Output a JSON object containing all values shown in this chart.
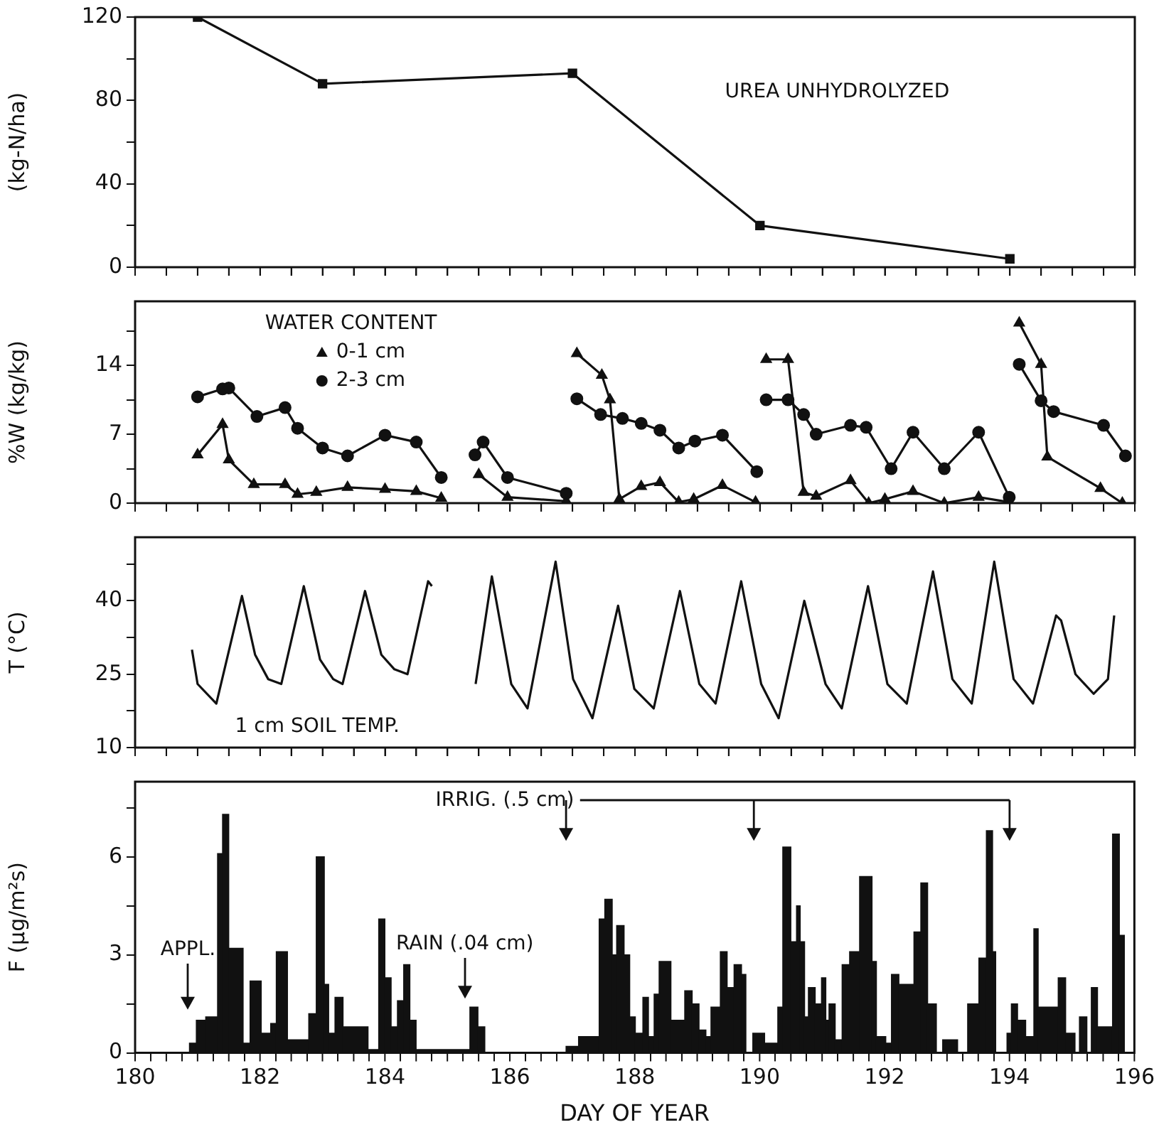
{
  "chart_data": [
    {
      "type": "line",
      "ylabel": "(kg-N/ha)",
      "annotations": [
        "UREA UNHYDROLYZED"
      ],
      "marker": "square",
      "tick_labels": "y",
      "x": [
        181,
        183,
        187,
        190,
        194
      ],
      "series": [
        {
          "color": "#111111",
          "values": [
            120,
            88,
            93,
            20,
            4
          ]
        }
      ],
      "xlim": [
        180,
        196
      ],
      "xticks": [
        180,
        {
          "value": 180.5,
          "label": null
        },
        {
          "value": 181,
          "label": null
        },
        {
          "value": 181.5,
          "label": null
        },
        182,
        {
          "value": 182.5,
          "label": null
        },
        {
          "value": 183,
          "label": null
        },
        {
          "value": 183.5,
          "label": null
        },
        184,
        {
          "value": 184.5,
          "label": null
        },
        {
          "value": 185,
          "label": null
        },
        {
          "value": 185.5,
          "label": null
        },
        186,
        {
          "value": 186.5,
          "label": null
        },
        {
          "value": 187,
          "label": null
        },
        {
          "value": 187.5,
          "label": null
        },
        188,
        {
          "value": 188.5,
          "label": null
        },
        {
          "value": 189,
          "label": null
        },
        {
          "value": 189.5,
          "label": null
        },
        190,
        {
          "value": 190.5,
          "label": null
        },
        {
          "value": 191,
          "label": null
        },
        {
          "value": 191.5,
          "label": null
        },
        192,
        {
          "value": 192.5,
          "label": null
        },
        {
          "value": 193,
          "label": null
        },
        {
          "value": 193.5,
          "label": null
        },
        194,
        {
          "value": 194.5,
          "label": null
        },
        {
          "value": 195,
          "label": null
        },
        {
          "value": 195.5,
          "label": null
        },
        196
      ],
      "ylim": [
        0,
        120
      ],
      "yticks": [
        0,
        {
          "value": 20,
          "label": null
        },
        40,
        {
          "value": 60,
          "label": null
        },
        80,
        {
          "value": 100,
          "label": null
        },
        120
      ]
    },
    {
      "type": "line",
      "ylabel": "%W (kg/kg)",
      "legend_title": "WATER CONTENT",
      "legend": "top left",
      "tick_labels": "y",
      "series": [
        {
          "name": "0-1 cm",
          "color": "#111111",
          "marker": "triangle",
          "x": [
            181.0,
            181.4,
            181.5,
            181.9,
            182.4,
            182.6,
            182.9,
            183.4,
            184.0,
            184.5,
            184.9,
            185.2,
            185.5,
            185.96,
            186.9,
            186.98,
            187.07,
            187.47,
            187.6,
            187.75,
            188.1,
            188.4,
            188.7,
            188.94,
            189.4,
            189.93,
            190.0,
            190.1,
            190.45,
            190.7,
            190.9,
            191.45,
            191.74,
            192.0,
            192.45,
            192.95,
            193.5,
            193.99,
            194.05,
            194.15,
            194.5,
            194.6,
            195.45,
            195.8
          ],
          "values": [
            4.9,
            8.0,
            4.4,
            1.9,
            1.9,
            0.9,
            1.1,
            1.6,
            1.4,
            1.2,
            0.5,
            null,
            2.9,
            0.6,
            0.2,
            null,
            15.2,
            13.0,
            10.5,
            0.4,
            1.7,
            2.1,
            0.1,
            0.4,
            1.8,
            0.1,
            null,
            14.6,
            14.6,
            1.1,
            0.7,
            2.3,
            0.0,
            0.4,
            1.2,
            0.0,
            0.6,
            0.1,
            null,
            18.3,
            14.1,
            4.7,
            1.5,
            0.0
          ]
        },
        {
          "name": "2-3 cm",
          "color": "#111111",
          "marker": "circle",
          "x": [
            181.0,
            181.4,
            181.5,
            181.95,
            182.4,
            182.6,
            183.0,
            183.4,
            184.0,
            184.5,
            184.9,
            185.2,
            185.44,
            185.57,
            185.96,
            186.9,
            186.98,
            187.07,
            187.45,
            187.8,
            188.1,
            188.4,
            188.7,
            188.96,
            189.4,
            189.95,
            190.0,
            190.1,
            190.45,
            190.7,
            190.9,
            191.45,
            191.7,
            192.1,
            192.45,
            192.95,
            193.5,
            193.99,
            194.05,
            194.15,
            194.5,
            194.7,
            195.5,
            195.85
          ],
          "values": [
            10.8,
            11.6,
            11.7,
            8.8,
            9.7,
            7.6,
            5.6,
            4.8,
            6.9,
            6.2,
            2.6,
            null,
            4.9,
            6.2,
            2.6,
            1.0,
            null,
            10.6,
            9.0,
            8.6,
            8.1,
            7.4,
            5.6,
            6.3,
            6.9,
            3.2,
            null,
            10.5,
            10.5,
            9.0,
            7.0,
            7.9,
            7.7,
            3.5,
            7.2,
            3.5,
            7.2,
            0.6,
            null,
            14.1,
            10.4,
            9.3,
            7.9,
            4.8
          ]
        }
      ],
      "xlim": [
        180,
        196
      ],
      "xticks": [
        180,
        {
          "value": 180.5,
          "label": null
        },
        {
          "value": 181,
          "label": null
        },
        {
          "value": 181.5,
          "label": null
        },
        182,
        {
          "value": 182.5,
          "label": null
        },
        {
          "value": 183,
          "label": null
        },
        {
          "value": 183.5,
          "label": null
        },
        184,
        {
          "value": 184.5,
          "label": null
        },
        {
          "value": 185,
          "label": null
        },
        {
          "value": 185.5,
          "label": null
        },
        186,
        {
          "value": 186.5,
          "label": null
        },
        {
          "value": 187,
          "label": null
        },
        {
          "value": 187.5,
          "label": null
        },
        188,
        {
          "value": 188.5,
          "label": null
        },
        {
          "value": 189,
          "label": null
        },
        {
          "value": 189.5,
          "label": null
        },
        190,
        {
          "value": 190.5,
          "label": null
        },
        {
          "value": 191,
          "label": null
        },
        {
          "value": 191.5,
          "label": null
        },
        192,
        {
          "value": 192.5,
          "label": null
        },
        {
          "value": 193,
          "label": null
        },
        {
          "value": 193.5,
          "label": null
        },
        194,
        {
          "value": 194.5,
          "label": null
        },
        {
          "value": 195,
          "label": null
        },
        {
          "value": 195.5,
          "label": null
        },
        196
      ],
      "ylim": [
        0,
        20.5
      ],
      "yticks": [
        0,
        {
          "value": 3.5,
          "label": null
        },
        7,
        {
          "value": 10.5,
          "label": null
        },
        14,
        {
          "value": 17.5,
          "label": null
        }
      ]
    },
    {
      "type": "line",
      "ylabel": "T (°C)",
      "annotations": [
        "1 cm SOIL TEMP."
      ],
      "tick_labels": "y",
      "x": [
        180.91,
        181.0,
        181.3,
        181.71,
        181.92,
        182.13,
        182.34,
        182.7,
        182.96,
        183.17,
        183.32,
        183.68,
        183.94,
        184.15,
        184.36,
        184.69,
        184.75,
        185.1,
        185.45,
        185.71,
        186.02,
        186.28,
        186.73,
        187.01,
        187.32,
        187.73,
        187.99,
        188.3,
        188.72,
        189.03,
        189.29,
        189.7,
        190.02,
        190.3,
        190.71,
        191.05,
        191.31,
        191.73,
        192.04,
        192.35,
        192.77,
        193.08,
        193.39,
        193.75,
        194.06,
        194.37,
        194.74,
        194.82,
        195.05,
        195.34,
        195.57,
        195.67
      ],
      "series": [
        {
          "color": "#111111",
          "values": [
            30,
            23,
            19,
            41,
            29,
            24,
            23,
            43,
            28,
            24,
            23,
            42,
            29,
            26,
            25,
            44,
            43,
            null,
            23,
            45,
            23,
            18,
            48,
            24,
            16,
            39,
            22,
            18,
            42,
            23,
            19,
            44,
            23,
            16,
            40,
            23,
            18,
            43,
            23,
            19,
            46,
            24,
            19,
            48,
            24,
            19,
            37,
            36,
            25,
            21,
            24,
            37
          ]
        }
      ],
      "xlim": [
        180,
        196
      ],
      "xticks": [
        180,
        {
          "value": 180.5,
          "label": null
        },
        {
          "value": 181,
          "label": null
        },
        {
          "value": 181.5,
          "label": null
        },
        182,
        {
          "value": 182.5,
          "label": null
        },
        {
          "value": 183,
          "label": null
        },
        {
          "value": 183.5,
          "label": null
        },
        184,
        {
          "value": 184.5,
          "label": null
        },
        {
          "value": 185,
          "label": null
        },
        {
          "value": 185.5,
          "label": null
        },
        186,
        {
          "value": 186.5,
          "label": null
        },
        {
          "value": 187,
          "label": null
        },
        {
          "value": 187.5,
          "label": null
        },
        188,
        {
          "value": 188.5,
          "label": null
        },
        {
          "value": 189,
          "label": null
        },
        {
          "value": 189.5,
          "label": null
        },
        190,
        {
          "value": 190.5,
          "label": null
        },
        {
          "value": 191,
          "label": null
        },
        {
          "value": 191.5,
          "label": null
        },
        192,
        {
          "value": 192.5,
          "label": null
        },
        {
          "value": 193,
          "label": null
        },
        {
          "value": 193.5,
          "label": null
        },
        194,
        {
          "value": 194.5,
          "label": null
        },
        {
          "value": 195,
          "label": null
        },
        {
          "value": 195.5,
          "label": null
        },
        196
      ],
      "ylim": [
        10,
        53
      ],
      "yticks": [
        10,
        {
          "value": 17.5,
          "label": null
        },
        25,
        {
          "value": 32.5,
          "label": null
        },
        40,
        {
          "value": 47.5,
          "label": null
        }
      ]
    },
    {
      "type": "histogram",
      "xlabel": "DAY OF YEAR",
      "ylabel": "F (µg/m²s)",
      "color": "#111111",
      "annotations": [
        "APPL.",
        "IRRIG. (.5 cm)",
        "RAIN (.04 cm)"
      ],
      "bins": [
        180.87,
        180.98,
        181.13,
        181.32,
        181.4,
        181.5,
        181.73,
        181.84,
        182.02,
        182.17,
        182.26,
        182.44,
        182.78,
        182.9,
        183.03,
        183.1,
        183.2,
        183.33,
        183.73,
        183.9,
        184.0,
        184.1,
        184.2,
        184.3,
        184.4,
        184.5,
        185.36,
        185.49,
        185.6,
        186.9,
        187.1,
        187.43,
        187.52,
        187.64,
        187.71,
        187.83,
        187.92,
        188.01,
        188.13,
        188.22,
        188.31,
        188.39,
        188.58,
        188.8,
        188.92,
        189.03,
        189.14,
        189.22,
        189.37,
        189.48,
        189.59,
        189.71,
        189.78,
        189.89,
        190.08,
        190.29,
        190.37,
        190.5,
        190.59,
        190.65,
        190.72,
        190.78,
        190.89,
        190.99,
        191.06,
        191.11,
        191.21,
        191.32,
        191.44,
        191.6,
        191.8,
        191.87,
        192.02,
        192.11,
        192.23,
        192.47,
        192.58,
        192.69,
        192.83,
        192.93,
        193.17,
        193.33,
        193.51,
        193.63,
        193.73,
        193.78,
        193.96,
        194.03,
        194.13,
        194.26,
        194.39,
        194.46,
        194.78,
        194.9,
        195.05,
        195.12,
        195.24,
        195.31,
        195.41,
        195.65,
        195.76,
        195.84
      ],
      "values": [
        0.3,
        1.0,
        1.1,
        6.1,
        7.3,
        3.2,
        0.3,
        2.2,
        0.6,
        0.9,
        3.1,
        0.4,
        1.2,
        6.0,
        2.1,
        0.6,
        1.7,
        0.8,
        0.1,
        4.1,
        2.3,
        0.8,
        1.6,
        2.7,
        1.0,
        0.1,
        1.4,
        0.8,
        0,
        0.2,
        0.5,
        4.1,
        4.7,
        3.0,
        3.9,
        3.0,
        1.1,
        0.6,
        1.7,
        0.5,
        1.8,
        2.8,
        1.0,
        1.9,
        1.5,
        0.7,
        0.5,
        1.4,
        3.1,
        2.0,
        2.7,
        2.4,
        0,
        0.6,
        0.3,
        1.4,
        6.3,
        3.4,
        4.5,
        3.4,
        1.1,
        2.0,
        1.5,
        2.3,
        1.0,
        1.5,
        0.4,
        2.7,
        3.1,
        5.4,
        2.8,
        0.5,
        0.3,
        2.4,
        2.1,
        3.7,
        5.2,
        1.5,
        0,
        0.4,
        0,
        1.5,
        2.9,
        6.8,
        3.1,
        0,
        0.6,
        1.5,
        1.0,
        0.5,
        3.8,
        1.4,
        2.3,
        0.6,
        0,
        1.1,
        0,
        2.0,
        0.8,
        6.7,
        3.6
      ],
      "xlim": [
        180,
        196
      ],
      "xticks": [
        180,
        {
          "value": 180.5,
          "label": null
        },
        {
          "value": 181,
          "label": null
        },
        {
          "value": 181.5,
          "label": null
        },
        182,
        {
          "value": 182.5,
          "label": null
        },
        {
          "value": 183,
          "label": null
        },
        {
          "value": 183.5,
          "label": null
        },
        184,
        {
          "value": 184.5,
          "label": null
        },
        {
          "value": 185,
          "label": null
        },
        {
          "value": 185.5,
          "label": null
        },
        186,
        {
          "value": 186.5,
          "label": null
        },
        {
          "value": 187,
          "label": null
        },
        {
          "value": 187.5,
          "label": null
        },
        188,
        {
          "value": 188.5,
          "label": null
        },
        {
          "value": 189,
          "label": null
        },
        {
          "value": 189.5,
          "label": null
        },
        190,
        {
          "value": 190.5,
          "label": null
        },
        {
          "value": 191,
          "label": null
        },
        {
          "value": 191.5,
          "label": null
        },
        192,
        {
          "value": 192.5,
          "label": null
        },
        {
          "value": 193,
          "label": null
        },
        {
          "value": 193.5,
          "label": null
        },
        194,
        {
          "value": 194.5,
          "label": null
        },
        {
          "value": 195,
          "label": null
        },
        {
          "value": 195.5,
          "label": null
        },
        196
      ],
      "ylim": [
        0,
        8.3
      ],
      "yticks": [
        0,
        {
          "value": 1.5,
          "label": null
        },
        3,
        {
          "value": 4.5,
          "label": null
        },
        6,
        {
          "value": 7.5,
          "label": null
        }
      ]
    }
  ]
}
